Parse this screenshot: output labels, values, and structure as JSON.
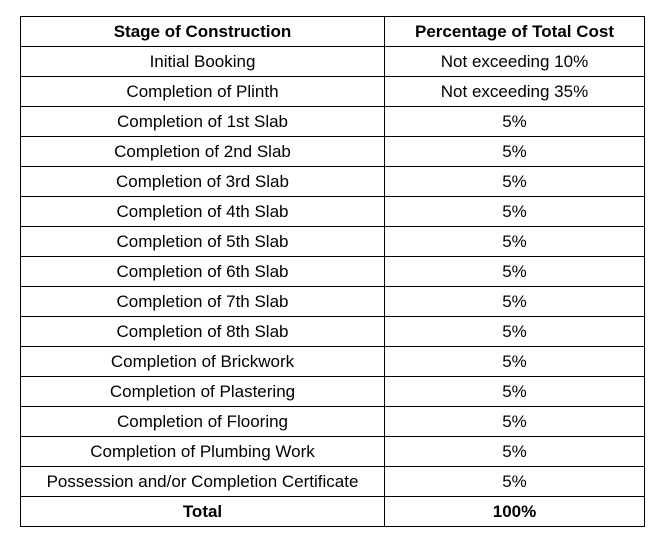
{
  "table": {
    "headers": {
      "stage": "Stage of Construction",
      "percentage": "Percentage of Total Cost"
    },
    "rows": [
      {
        "stage": "Initial Booking",
        "percentage": "Not exceeding 10%"
      },
      {
        "stage": "Completion of Plinth",
        "percentage": "Not exceeding 35%"
      },
      {
        "stage": "Completion of 1st Slab",
        "percentage": "5%"
      },
      {
        "stage": "Completion of 2nd Slab",
        "percentage": "5%"
      },
      {
        "stage": "Completion of 3rd Slab",
        "percentage": "5%"
      },
      {
        "stage": "Completion of 4th Slab",
        "percentage": "5%"
      },
      {
        "stage": "Completion of 5th Slab",
        "percentage": "5%"
      },
      {
        "stage": "Completion of 6th Slab",
        "percentage": "5%"
      },
      {
        "stage": "Completion of 7th Slab",
        "percentage": "5%"
      },
      {
        "stage": "Completion of 8th Slab",
        "percentage": "5%"
      },
      {
        "stage": "Completion of Brickwork",
        "percentage": "5%"
      },
      {
        "stage": "Completion of Plastering",
        "percentage": "5%"
      },
      {
        "stage": "Completion of Flooring",
        "percentage": "5%"
      },
      {
        "stage": "Completion of Plumbing Work",
        "percentage": "5%"
      },
      {
        "stage": "Possession and/or Completion Certificate",
        "percentage": "5%"
      }
    ],
    "total": {
      "label": "Total",
      "value": "100%"
    }
  }
}
